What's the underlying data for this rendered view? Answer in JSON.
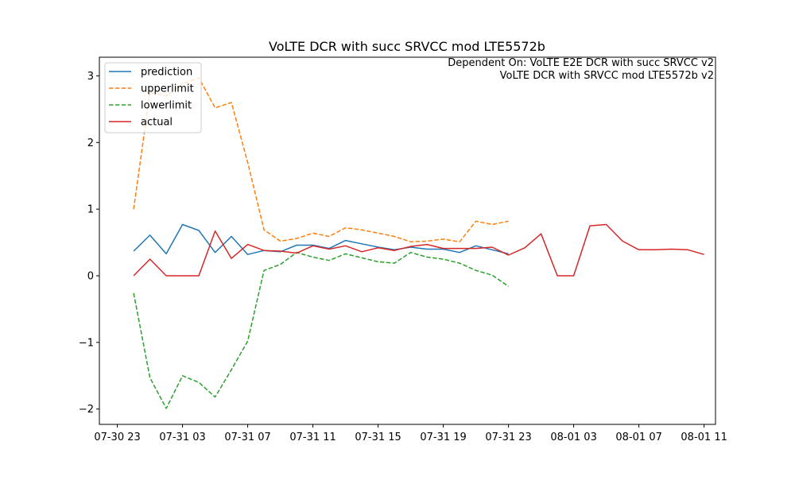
{
  "chart_data": {
    "type": "line",
    "title": "VoLTE DCR with succ SRVCC mod LTE5572b",
    "annotation": [
      "Dependent On: VoLTE E2E DCR with succ SRVCC v2",
      "VoLTE DCR with SRVCC mod LTE5572b v2"
    ],
    "xlabel": "",
    "ylabel": "",
    "x_unit": "hours",
    "x_start": "07-30 23",
    "x_ticks": [
      {
        "x": 0,
        "label": "07-30 23"
      },
      {
        "x": 4,
        "label": "07-31 03"
      },
      {
        "x": 8,
        "label": "07-31 07"
      },
      {
        "x": 12,
        "label": "07-31 11"
      },
      {
        "x": 16,
        "label": "07-31 15"
      },
      {
        "x": 20,
        "label": "07-31 19"
      },
      {
        "x": 24,
        "label": "07-31 23"
      },
      {
        "x": 28,
        "label": "08-01 03"
      },
      {
        "x": 32,
        "label": "08-01 07"
      },
      {
        "x": 36,
        "label": "08-01 11"
      }
    ],
    "y_ticks": [
      {
        "y": -2,
        "label": "−2"
      },
      {
        "y": -1,
        "label": "−1"
      },
      {
        "y": 0,
        "label": "0"
      },
      {
        "y": 1,
        "label": "1"
      },
      {
        "y": 2,
        "label": "2"
      },
      {
        "y": 3,
        "label": "3"
      }
    ],
    "xlim": [
      -1.1,
      36.7
    ],
    "ylim": [
      -2.23,
      3.28
    ],
    "grid": false,
    "legend_position": "top-left",
    "series": [
      {
        "name": "prediction",
        "color": "#1f77b4",
        "dash": "solid",
        "x": [
          1,
          2,
          3,
          4,
          5,
          6,
          7,
          8,
          9,
          10,
          11,
          12,
          13,
          14,
          15,
          16,
          17,
          18,
          19,
          20,
          21,
          22,
          23,
          24
        ],
        "y": [
          0.37,
          0.61,
          0.33,
          0.77,
          0.68,
          0.35,
          0.59,
          0.32,
          0.38,
          0.36,
          0.46,
          0.46,
          0.41,
          0.53,
          0.48,
          0.43,
          0.39,
          0.43,
          0.4,
          0.4,
          0.35,
          0.45,
          0.39,
          0.33
        ]
      },
      {
        "name": "upperlimit",
        "color": "#ff7f0e",
        "dash": "dashed",
        "x": [
          1,
          2,
          3,
          4,
          5,
          6,
          7,
          8,
          9,
          10,
          11,
          12,
          13,
          14,
          15,
          16,
          17,
          18,
          19,
          20,
          21,
          22,
          23,
          24
        ],
        "y": [
          1.0,
          2.75,
          2.7,
          2.88,
          2.97,
          2.52,
          2.6,
          1.7,
          0.69,
          0.52,
          0.56,
          0.64,
          0.59,
          0.72,
          0.69,
          0.64,
          0.59,
          0.51,
          0.52,
          0.55,
          0.51,
          0.82,
          0.77,
          0.82
        ]
      },
      {
        "name": "lowerlimit",
        "color": "#2ca02c",
        "dash": "dashed",
        "x": [
          1,
          2,
          3,
          4,
          5,
          6,
          7,
          8,
          9,
          10,
          11,
          12,
          13,
          14,
          15,
          16,
          17,
          18,
          19,
          20,
          21,
          22,
          23,
          24
        ],
        "y": [
          -0.26,
          -1.53,
          -1.99,
          -1.5,
          -1.6,
          -1.82,
          -1.41,
          -0.98,
          0.08,
          0.17,
          0.35,
          0.28,
          0.23,
          0.33,
          0.27,
          0.21,
          0.19,
          0.35,
          0.28,
          0.25,
          0.19,
          0.08,
          0.01,
          -0.16
        ]
      },
      {
        "name": "actual",
        "color": "#d62728",
        "dash": "solid",
        "x": [
          1,
          2,
          3,
          4,
          5,
          6,
          7,
          8,
          9,
          10,
          11,
          12,
          13,
          14,
          15,
          16,
          17,
          18,
          19,
          20,
          21,
          22,
          23,
          24,
          25,
          26,
          27,
          28,
          29,
          30,
          31,
          32,
          33,
          34,
          35,
          36
        ],
        "y": [
          0.0,
          0.25,
          0.0,
          0.0,
          0.0,
          0.67,
          0.26,
          0.47,
          0.38,
          0.37,
          0.34,
          0.45,
          0.4,
          0.45,
          0.36,
          0.42,
          0.38,
          0.44,
          0.47,
          0.41,
          0.41,
          0.41,
          0.43,
          0.31,
          0.42,
          0.63,
          0.0,
          0.0,
          0.75,
          0.77,
          0.52,
          0.39,
          0.39,
          0.4,
          0.39,
          0.32
        ]
      }
    ]
  }
}
